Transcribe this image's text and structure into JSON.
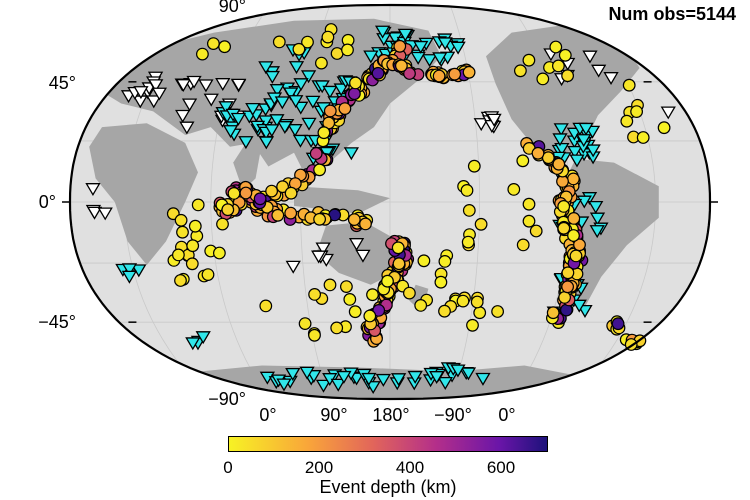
{
  "header": {
    "obs_label": "Num obs=5144"
  },
  "map": {
    "projection": "Winkel tripel (global, centered on 150°E)",
    "lat_labels": [
      "90°",
      "45°",
      "0°",
      "−45°",
      "−90°"
    ],
    "lon_labels": [
      "0°",
      "90°",
      "180°",
      "−90°",
      "0°"
    ],
    "ocean_color": "#e0e0e0",
    "land_color": "#a6a6a6",
    "symbols": {
      "station_white": "white inverted triangle",
      "station_cyan": "cyan inverted triangle (#30e8ea)",
      "event": "circle colored by event depth"
    }
  },
  "colorbar": {
    "title": "Event depth (km)",
    "ticks": [
      "0",
      "200",
      "400",
      "600"
    ],
    "range_km": [
      0,
      700
    ],
    "colormap": "plasma (yellow → orange → magenta → purple → dark blue)"
  }
}
